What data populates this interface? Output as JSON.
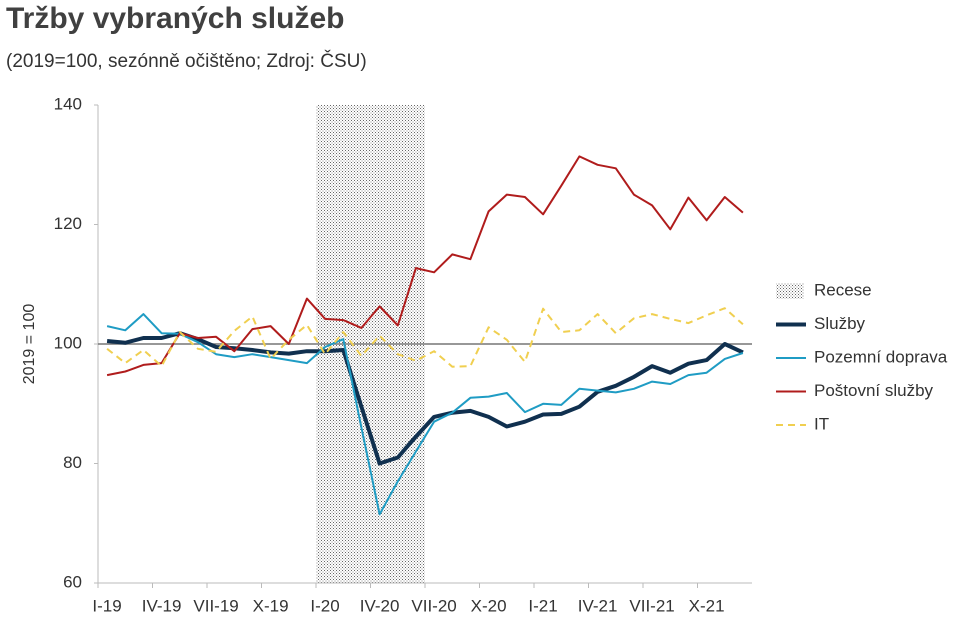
{
  "chart_data": {
    "type": "line",
    "title": "Tržby vybraných služeb",
    "subtitle": "(2019=100, sezónně očištěno; Zdroj: ČSU)",
    "y_label": "2019 = 100",
    "categories": [
      "I-19",
      null,
      null,
      "IV-19",
      null,
      null,
      "VII-19",
      null,
      null,
      "X-19",
      null,
      null,
      "I-20",
      null,
      null,
      "IV-20",
      null,
      null,
      "VII-20",
      null,
      null,
      "X-20",
      null,
      null,
      "I-21",
      null,
      null,
      "IV-21",
      null,
      null,
      "VII-21",
      null,
      null,
      "X-21",
      null,
      null
    ],
    "ylim": [
      60,
      140
    ],
    "yticks": [
      60,
      80,
      100,
      120,
      140
    ],
    "reference_line": 100,
    "recession": {
      "name": "Recese",
      "span": [
        12,
        17
      ]
    },
    "series": [
      {
        "name": "Služby",
        "color": "#10304f",
        "width": 4,
        "dash": false,
        "values": [
          100.5,
          100.2,
          101,
          101,
          101.8,
          100.8,
          99.5,
          99.3,
          99,
          98.6,
          98.4,
          98.8,
          98.8,
          99,
          89.5,
          80,
          81,
          84.5,
          87.8,
          88.5,
          88.8,
          87.8,
          86.2,
          87,
          88.2,
          88.3,
          89.5,
          92,
          93,
          94.5,
          96.3,
          95.2,
          96.7,
          97.3,
          100,
          98.6
        ]
      },
      {
        "name": "Pozemní doprava",
        "color": "#1f9cc4",
        "width": 2,
        "dash": false,
        "values": [
          103,
          102.3,
          105,
          101.8,
          101.7,
          100.3,
          98.3,
          97.8,
          98.3,
          97.8,
          97.3,
          96.8,
          99.5,
          100.8,
          86,
          71.5,
          77,
          82,
          87,
          88.5,
          91,
          91.2,
          91.8,
          88.6,
          90,
          89.8,
          92.5,
          92.2,
          91.9,
          92.5,
          93.7,
          93.3,
          94.8,
          95.2,
          97.5,
          98.5
        ]
      },
      {
        "name": "Poštovní služby",
        "color": "#b01c1c",
        "width": 2,
        "dash": false,
        "values": [
          94.8,
          95.4,
          96.5,
          96.8,
          101.8,
          101,
          101.2,
          98.8,
          102.5,
          103,
          100,
          107.6,
          104.2,
          104,
          102.7,
          106.3,
          103.1,
          112.7,
          112,
          115,
          114.2,
          122.2,
          125,
          124.6,
          121.7,
          126.5,
          131.4,
          130,
          129.4,
          125,
          123.2,
          119.2,
          124.5,
          120.7,
          124.6,
          122
        ]
      },
      {
        "name": "IT",
        "color": "#f0cf50",
        "width": 2,
        "dash": true,
        "values": [
          99.2,
          96.8,
          99,
          96.3,
          102,
          99.2,
          98.7,
          102.2,
          104.6,
          97.5,
          100.7,
          103.2,
          98.3,
          102,
          98,
          101.4,
          98.3,
          97.2,
          98.8,
          96.2,
          96.3,
          102.8,
          100.7,
          97,
          105.9,
          102,
          102.3,
          105,
          101.8,
          104.3,
          105,
          104.2,
          103.5,
          104.8,
          106,
          103.3
        ]
      }
    ]
  }
}
